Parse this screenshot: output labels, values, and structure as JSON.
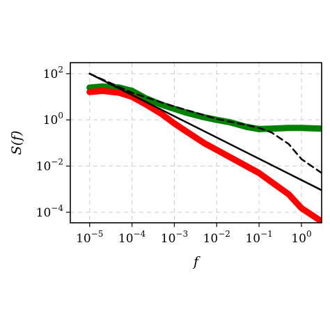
{
  "chart_data": {
    "type": "line",
    "xlabel": "f",
    "ylabel": "S(f)",
    "xscale": "log",
    "yscale": "log",
    "xlim": [
      3.5e-06,
      3.0
    ],
    "ylim": [
      3.5e-05,
      300
    ],
    "grid": true,
    "x_ticks": [
      {
        "value": 1e-05,
        "base": "10",
        "exp": "−5"
      },
      {
        "value": 0.0001,
        "base": "10",
        "exp": "−4"
      },
      {
        "value": 0.001,
        "base": "10",
        "exp": "−3"
      },
      {
        "value": 0.01,
        "base": "10",
        "exp": "−2"
      },
      {
        "value": 0.1,
        "base": "10",
        "exp": "−1"
      },
      {
        "value": 1,
        "base": "10",
        "exp": "0"
      }
    ],
    "y_ticks": [
      {
        "value": 0.0001,
        "base": "10",
        "exp": "−4"
      },
      {
        "value": 0.01,
        "base": "10",
        "exp": "−2"
      },
      {
        "value": 1,
        "base": "10",
        "exp": "0"
      },
      {
        "value": 100,
        "base": "10",
        "exp": "2"
      }
    ],
    "series": [
      {
        "color": "#008000",
        "style": "thick-solid",
        "x": [
          1e-05,
          2e-05,
          5e-05,
          0.0001,
          0.0002,
          0.0005,
          0.001,
          0.002,
          0.005,
          0.01,
          0.02,
          0.05,
          0.1,
          0.2,
          0.5,
          1.0,
          3.0
        ],
        "y": [
          25,
          28,
          25,
          18,
          9,
          4.5,
          3.0,
          2.0,
          1.3,
          1.0,
          0.8,
          0.5,
          0.4,
          0.42,
          0.45,
          0.45,
          0.42
        ]
      },
      {
        "color": "#ff0000",
        "style": "thick-solid",
        "x": [
          1e-05,
          2e-05,
          5e-05,
          0.0001,
          0.0002,
          0.0005,
          0.001,
          0.002,
          0.005,
          0.01,
          0.02,
          0.05,
          0.1,
          0.2,
          0.5,
          1.0,
          3.0
        ],
        "y": [
          16,
          18,
          15,
          10,
          5,
          1.8,
          0.7,
          0.3,
          0.1,
          0.05,
          0.025,
          0.01,
          0.005,
          0.002,
          0.0006,
          0.00015,
          4e-05
        ]
      },
      {
        "color": "#000000",
        "style": "dashed",
        "x": [
          1e-05,
          0.0001,
          0.001,
          0.01,
          0.05,
          0.1,
          0.2,
          0.5,
          1.0,
          3.0
        ],
        "y": [
          100,
          15,
          3.8,
          1.1,
          0.6,
          0.45,
          0.28,
          0.09,
          0.02,
          0.005
        ]
      },
      {
        "color": "#000000",
        "style": "solid",
        "x": [
          1e-05,
          3.0
        ],
        "y": [
          100,
          0.0009
        ]
      }
    ]
  }
}
